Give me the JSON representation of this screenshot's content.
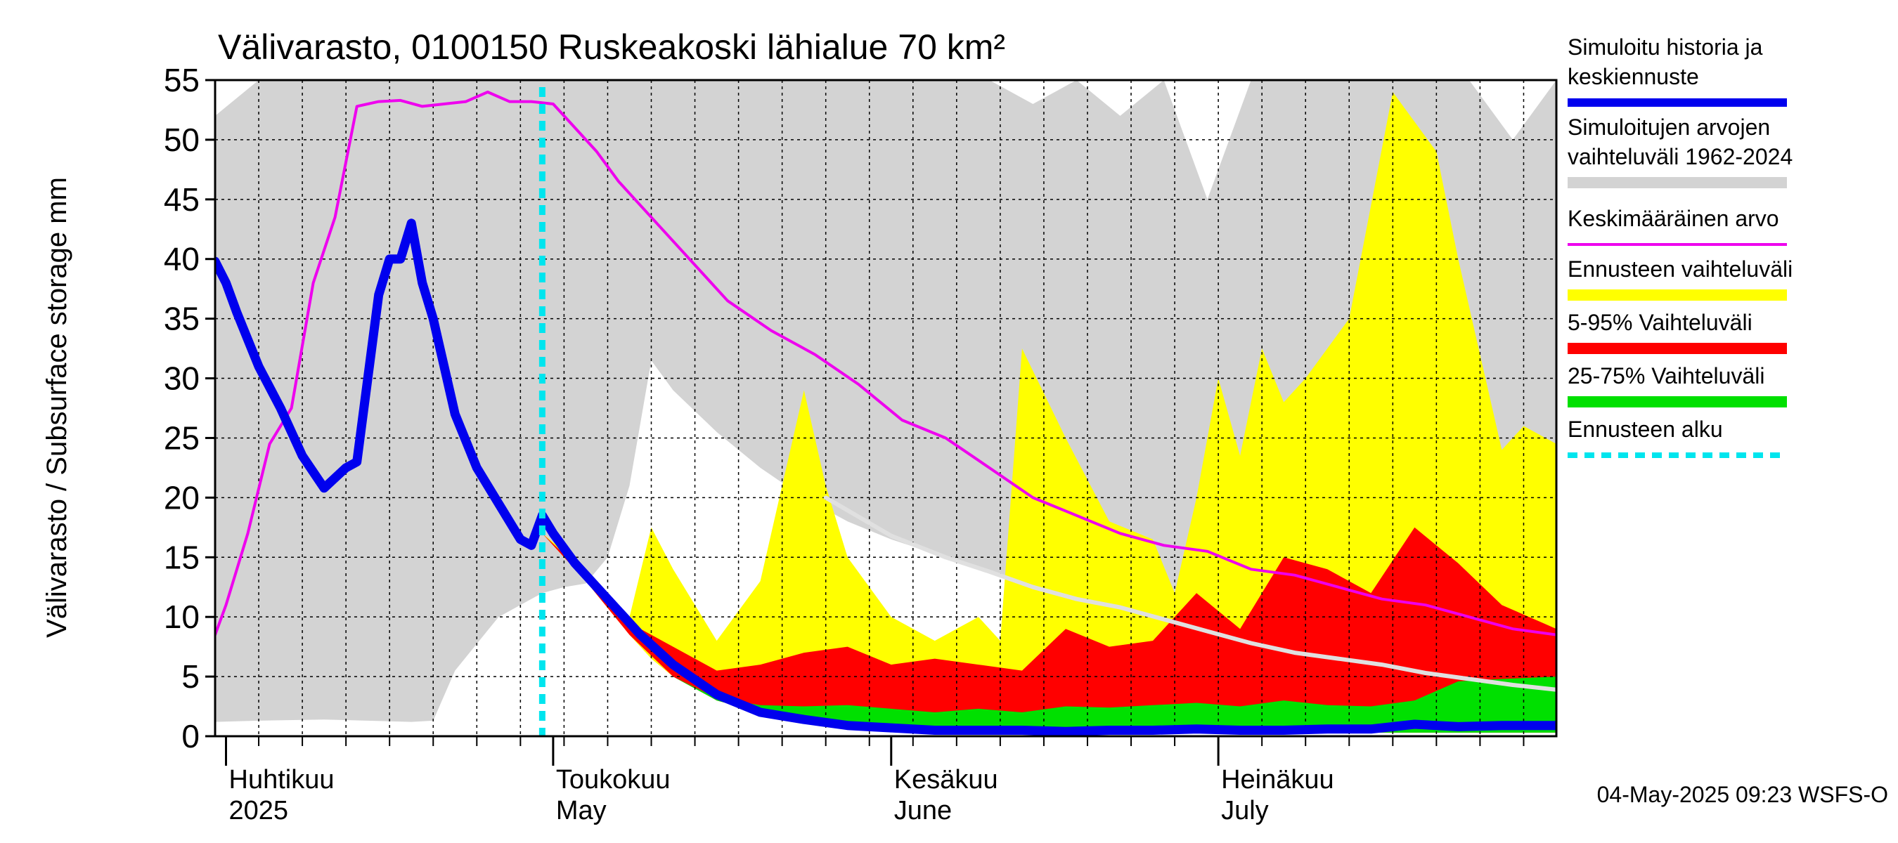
{
  "chart_data": {
    "type": "area",
    "title": "Välivarasto, 0100150 Ruskeakoski lähialue 70 km²",
    "ylabel": "Välivarasto / Subsurface storage  mm",
    "ylim": [
      0,
      55
    ],
    "yticks": [
      0,
      5,
      10,
      15,
      20,
      25,
      30,
      35,
      40,
      45,
      50,
      55
    ],
    "x_start": "2025-03-31",
    "x_end": "2025-08-01",
    "forecast_start": "2025-04-30",
    "months": [
      {
        "date": "2025-04-01",
        "fi": "Huhtikuu",
        "en": "2025"
      },
      {
        "date": "2025-05-01",
        "fi": "Toukokuu",
        "en": "May"
      },
      {
        "date": "2025-06-01",
        "fi": "Kesäkuu",
        "en": "June"
      },
      {
        "date": "2025-07-01",
        "fi": "Heinäkuu",
        "en": "July"
      }
    ],
    "colors": {
      "sim_range": "#d3d3d3",
      "forecast_range": "#ffff00",
      "p5_95": "#ff0000",
      "p25_75": "#00e000",
      "history": "#0000ee",
      "mean": "#ee00ee",
      "median_line": "#e0e0e0",
      "forecast_start": "#00e5ee"
    },
    "series": [
      {
        "key": "sim_range",
        "name": "Simuloitujen arvojen vaihteluväli 1962-2024",
        "kind": "band",
        "x": [
          "2025-03-31",
          "2025-04-04",
          "2025-04-10",
          "2025-04-14",
          "2025-04-18",
          "2025-04-20",
          "2025-04-22",
          "2025-04-26",
          "2025-04-30",
          "2025-05-02",
          "2025-05-04",
          "2025-05-06",
          "2025-05-08",
          "2025-05-10",
          "2025-05-12",
          "2025-05-16",
          "2025-05-20",
          "2025-05-24",
          "2025-05-28",
          "2025-06-01",
          "2025-06-06",
          "2025-06-10",
          "2025-06-14",
          "2025-06-18",
          "2025-06-22",
          "2025-06-26",
          "2025-06-30",
          "2025-07-04",
          "2025-07-08",
          "2025-07-12",
          "2025-07-16",
          "2025-07-20",
          "2025-07-24",
          "2025-07-28",
          "2025-08-01"
        ],
        "low": [
          1.2,
          1.3,
          1.4,
          1.3,
          1.2,
          1.3,
          5.5,
          10.0,
          12.0,
          12.5,
          12.8,
          15.0,
          21.0,
          31.5,
          29.0,
          25.5,
          22.5,
          20.0,
          18.0,
          16.5,
          15.0,
          13.8,
          12.5,
          11.5,
          10.8,
          9.8,
          8.8,
          7.8,
          7.0,
          6.3,
          5.8,
          5.3,
          4.8,
          4.3,
          3.9
        ],
        "high": [
          52.0,
          55.0,
          55.0,
          55.0,
          55.0,
          55.0,
          55.0,
          55.0,
          55.0,
          55.0,
          55.0,
          55.0,
          55.0,
          55.0,
          55.0,
          55.0,
          55.0,
          55.0,
          55.0,
          55.0,
          55.0,
          55.0,
          53.0,
          55.0,
          52.0,
          55.0,
          45.0,
          55.0,
          55.0,
          55.0,
          55.0,
          55.0,
          55.0,
          50.0,
          55.0
        ]
      },
      {
        "key": "forecast_range",
        "name": "Ennusteen vaihteluväli",
        "kind": "band",
        "x": [
          "2025-04-30",
          "2025-05-04",
          "2025-05-08",
          "2025-05-10",
          "2025-05-12",
          "2025-05-16",
          "2025-05-20",
          "2025-05-24",
          "2025-05-26",
          "2025-05-28",
          "2025-06-01",
          "2025-06-05",
          "2025-06-09",
          "2025-06-11",
          "2025-06-13",
          "2025-06-17",
          "2025-06-21",
          "2025-06-25",
          "2025-06-27",
          "2025-06-29",
          "2025-07-01",
          "2025-07-03",
          "2025-07-05",
          "2025-07-07",
          "2025-07-09",
          "2025-07-13",
          "2025-07-17",
          "2025-07-21",
          "2025-07-23",
          "2025-07-25",
          "2025-07-27",
          "2025-07-29",
          "2025-08-01"
        ],
        "low": [
          17.0,
          13.0,
          8.5,
          6.5,
          5.0,
          3.0,
          2.0,
          1.5,
          1.2,
          1.0,
          0.8,
          0.6,
          0.5,
          0.4,
          0.3,
          0.3,
          0.3,
          0.3,
          0.3,
          0.3,
          0.3,
          0.3,
          0.3,
          0.3,
          0.3,
          0.3,
          0.3,
          0.3,
          0.3,
          0.3,
          0.3,
          0.3,
          0.3
        ],
        "high": [
          17.0,
          14.0,
          10.0,
          17.5,
          14.0,
          8.0,
          13.0,
          29.0,
          21.0,
          15.0,
          10.0,
          8.0,
          10.0,
          8.0,
          32.5,
          25.0,
          18.0,
          16.5,
          12.0,
          20.0,
          30.0,
          23.5,
          32.5,
          28.0,
          30.0,
          35.0,
          54.0,
          49.0,
          40.0,
          32.0,
          24.0,
          26.0,
          24.5
        ]
      },
      {
        "key": "p5_95",
        "name": "5-95% Vaihteluväli",
        "kind": "band",
        "x": [
          "2025-04-30",
          "2025-05-04",
          "2025-05-08",
          "2025-05-12",
          "2025-05-16",
          "2025-05-20",
          "2025-05-24",
          "2025-05-28",
          "2025-06-01",
          "2025-06-05",
          "2025-06-09",
          "2025-06-13",
          "2025-06-17",
          "2025-06-21",
          "2025-06-25",
          "2025-06-29",
          "2025-07-03",
          "2025-07-07",
          "2025-07-11",
          "2025-07-15",
          "2025-07-19",
          "2025-07-23",
          "2025-07-27",
          "2025-08-01"
        ],
        "low": [
          17.0,
          13.0,
          8.5,
          5.0,
          3.0,
          2.0,
          1.5,
          1.0,
          0.8,
          0.5,
          0.4,
          0.3,
          0.3,
          0.3,
          0.3,
          0.3,
          0.3,
          0.3,
          0.3,
          0.3,
          0.3,
          0.3,
          0.3,
          0.3
        ],
        "high": [
          17.0,
          13.5,
          9.5,
          7.5,
          5.5,
          6.0,
          7.0,
          7.5,
          6.0,
          6.5,
          6.0,
          5.5,
          9.0,
          7.5,
          8.0,
          12.0,
          9.0,
          15.0,
          14.0,
          12.0,
          17.5,
          14.5,
          11.0,
          9.0
        ]
      },
      {
        "key": "p25_75",
        "name": "25-75% Vaihteluväli",
        "kind": "band",
        "x": [
          "2025-04-30",
          "2025-05-04",
          "2025-05-08",
          "2025-05-12",
          "2025-05-16",
          "2025-05-20",
          "2025-05-24",
          "2025-05-28",
          "2025-06-01",
          "2025-06-05",
          "2025-06-09",
          "2025-06-13",
          "2025-06-17",
          "2025-06-21",
          "2025-06-25",
          "2025-06-29",
          "2025-07-03",
          "2025-07-07",
          "2025-07-11",
          "2025-07-15",
          "2025-07-19",
          "2025-07-23",
          "2025-07-27",
          "2025-08-01"
        ],
        "low": [
          17.0,
          13.0,
          8.5,
          5.0,
          3.0,
          2.0,
          1.5,
          1.0,
          0.8,
          0.6,
          0.5,
          0.4,
          0.3,
          0.3,
          0.3,
          0.3,
          0.3,
          0.3,
          0.3,
          0.3,
          0.3,
          0.3,
          0.3,
          0.3
        ],
        "high": [
          17.0,
          13.0,
          8.5,
          5.0,
          3.2,
          2.6,
          2.5,
          2.6,
          2.3,
          2.0,
          2.3,
          2.0,
          2.5,
          2.4,
          2.6,
          2.8,
          2.5,
          3.0,
          2.6,
          2.5,
          3.0,
          4.6,
          4.8,
          5.0
        ]
      },
      {
        "key": "median_line",
        "kind": "line",
        "x": [
          "2025-05-26",
          "2025-06-01",
          "2025-06-06",
          "2025-06-10",
          "2025-06-14",
          "2025-06-18",
          "2025-06-22",
          "2025-06-26",
          "2025-06-30",
          "2025-07-04",
          "2025-07-08",
          "2025-07-12",
          "2025-07-16",
          "2025-07-20",
          "2025-07-24",
          "2025-07-28",
          "2025-08-01"
        ],
        "y": [
          20.0,
          16.8,
          15.0,
          13.8,
          12.5,
          11.5,
          10.8,
          9.8,
          8.8,
          7.8,
          7.0,
          6.5,
          6.0,
          5.3,
          4.8,
          4.3,
          3.9
        ]
      },
      {
        "key": "mean",
        "name": "Keskimääräinen arvo",
        "kind": "line",
        "x": [
          "2025-03-31",
          "2025-04-01",
          "2025-04-03",
          "2025-04-05",
          "2025-04-07",
          "2025-04-09",
          "2025-04-11",
          "2025-04-13",
          "2025-04-15",
          "2025-04-17",
          "2025-04-19",
          "2025-04-21",
          "2025-04-23",
          "2025-04-25",
          "2025-04-27",
          "2025-04-29",
          "2025-05-01",
          "2025-05-03",
          "2025-05-05",
          "2025-05-07",
          "2025-05-09",
          "2025-05-13",
          "2025-05-17",
          "2025-05-21",
          "2025-05-25",
          "2025-05-29",
          "2025-06-02",
          "2025-06-06",
          "2025-06-10",
          "2025-06-14",
          "2025-06-18",
          "2025-06-22",
          "2025-06-26",
          "2025-06-30",
          "2025-07-04",
          "2025-07-08",
          "2025-07-12",
          "2025-07-16",
          "2025-07-20",
          "2025-07-24",
          "2025-07-28",
          "2025-08-01"
        ],
        "y": [
          8.5,
          11.0,
          17.0,
          24.5,
          27.5,
          38.0,
          43.5,
          52.8,
          53.2,
          53.3,
          52.8,
          53.0,
          53.2,
          54.0,
          53.2,
          53.2,
          53.0,
          51.0,
          49.0,
          46.5,
          44.5,
          40.5,
          36.5,
          34.0,
          32.0,
          29.5,
          26.5,
          25.0,
          22.5,
          20.0,
          18.5,
          17.0,
          16.0,
          15.5,
          14.0,
          13.5,
          12.5,
          11.5,
          11.0,
          10.0,
          9.0,
          8.5
        ]
      },
      {
        "key": "history",
        "name": "Simuloitu historia ja keskiennuste",
        "kind": "line",
        "x": [
          "2025-03-31",
          "2025-04-01",
          "2025-04-02",
          "2025-04-04",
          "2025-04-06",
          "2025-04-08",
          "2025-04-10",
          "2025-04-12",
          "2025-04-13",
          "2025-04-14",
          "2025-04-15",
          "2025-04-16",
          "2025-04-17",
          "2025-04-18",
          "2025-04-19",
          "2025-04-20",
          "2025-04-21",
          "2025-04-22",
          "2025-04-24",
          "2025-04-26",
          "2025-04-28",
          "2025-04-29",
          "2025-04-30",
          "2025-05-01",
          "2025-05-03",
          "2025-05-05",
          "2025-05-07",
          "2025-05-09",
          "2025-05-12",
          "2025-05-16",
          "2025-05-20",
          "2025-05-24",
          "2025-05-28",
          "2025-06-01",
          "2025-06-05",
          "2025-06-09",
          "2025-06-13",
          "2025-06-17",
          "2025-06-21",
          "2025-06-25",
          "2025-06-29",
          "2025-07-03",
          "2025-07-07",
          "2025-07-11",
          "2025-07-15",
          "2025-07-19",
          "2025-07-23",
          "2025-07-27",
          "2025-08-01"
        ],
        "y": [
          39.8,
          38.0,
          35.5,
          31.0,
          27.5,
          23.5,
          20.8,
          22.5,
          23.0,
          30.0,
          37.0,
          40.0,
          40.0,
          43.0,
          38.0,
          35.0,
          31.0,
          27.0,
          22.5,
          19.5,
          16.5,
          16.0,
          18.5,
          17.0,
          14.5,
          12.5,
          10.5,
          8.5,
          6.0,
          3.5,
          2.0,
          1.4,
          0.9,
          0.7,
          0.5,
          0.5,
          0.5,
          0.4,
          0.5,
          0.5,
          0.6,
          0.5,
          0.5,
          0.6,
          0.6,
          1.0,
          0.8,
          0.9,
          0.9
        ]
      }
    ],
    "legend": [
      {
        "series": "history",
        "lines": [
          "Simuloitu historia ja",
          "keskiennuste"
        ]
      },
      {
        "series": "sim_range",
        "lines": [
          "Simuloitujen arvojen",
          "vaihteluväli 1962-2024"
        ]
      },
      {
        "series": "mean",
        "lines": [
          "Keskimääräinen arvo"
        ]
      },
      {
        "series": "forecast_range",
        "lines": [
          "Ennusteen vaihteluväli"
        ]
      },
      {
        "series": "p5_95",
        "lines": [
          "5-95% Vaihteluväli"
        ]
      },
      {
        "series": "p25_75",
        "lines": [
          "25-75% Vaihteluväli"
        ]
      },
      {
        "series": "forecast_start",
        "lines": [
          "Ennusteen alku"
        ]
      }
    ],
    "footer": "04-May-2025 09:23 WSFS-O"
  }
}
